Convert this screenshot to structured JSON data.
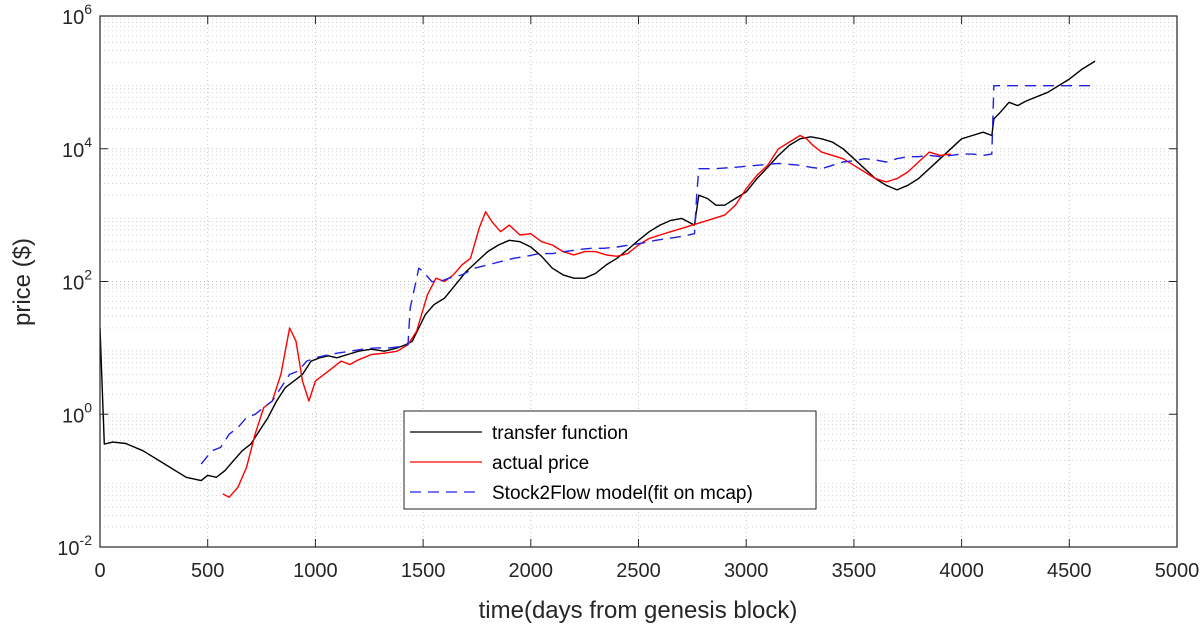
{
  "chart_data": {
    "type": "line",
    "title": "",
    "xlabel": "time(days from genesis block)",
    "ylabel": "price ($)",
    "xlim": [
      0,
      5000
    ],
    "ylim_log10": [
      -2,
      6
    ],
    "y_scale": "log",
    "grid": "major and minor, dotted",
    "x_ticks": [
      0,
      500,
      1000,
      1500,
      2000,
      2500,
      3000,
      3500,
      4000,
      4500,
      5000
    ],
    "x_tick_labels": [
      "0",
      "500",
      "1000",
      "1500",
      "2000",
      "2500",
      "3000",
      "3500",
      "4000",
      "4500",
      "5000"
    ],
    "y_ticks": [
      {
        "log": -2,
        "base": "10",
        "exp": "-2"
      },
      {
        "log": 0,
        "base": "10",
        "exp": "0"
      },
      {
        "log": 2,
        "base": "10",
        "exp": "2"
      },
      {
        "log": 4,
        "base": "10",
        "exp": "4"
      },
      {
        "log": 6,
        "base": "10",
        "exp": "6"
      }
    ],
    "legend_position": "lower-center",
    "series": [
      {
        "name": "transfer function",
        "color": "#000000",
        "style": "solid",
        "points": [
          [
            0,
            1.3
          ],
          [
            20,
            -0.45
          ],
          [
            60,
            -0.42
          ],
          [
            120,
            -0.44
          ],
          [
            200,
            -0.55
          ],
          [
            300,
            -0.75
          ],
          [
            400,
            -0.95
          ],
          [
            470,
            -1.0
          ],
          [
            500,
            -0.92
          ],
          [
            540,
            -0.95
          ],
          [
            580,
            -0.85
          ],
          [
            620,
            -0.7
          ],
          [
            660,
            -0.55
          ],
          [
            700,
            -0.45
          ],
          [
            740,
            -0.25
          ],
          [
            780,
            -0.05
          ],
          [
            820,
            0.2
          ],
          [
            860,
            0.4
          ],
          [
            900,
            0.5
          ],
          [
            940,
            0.6
          ],
          [
            980,
            0.8
          ],
          [
            1020,
            0.85
          ],
          [
            1060,
            0.88
          ],
          [
            1100,
            0.85
          ],
          [
            1150,
            0.9
          ],
          [
            1200,
            0.95
          ],
          [
            1260,
            0.98
          ],
          [
            1320,
            0.95
          ],
          [
            1380,
            1.0
          ],
          [
            1420,
            1.05
          ],
          [
            1450,
            1.1
          ],
          [
            1480,
            1.3
          ],
          [
            1510,
            1.5
          ],
          [
            1550,
            1.65
          ],
          [
            1600,
            1.75
          ],
          [
            1650,
            1.95
          ],
          [
            1700,
            2.15
          ],
          [
            1750,
            2.3
          ],
          [
            1800,
            2.45
          ],
          [
            1850,
            2.55
          ],
          [
            1900,
            2.62
          ],
          [
            1950,
            2.6
          ],
          [
            2000,
            2.52
          ],
          [
            2050,
            2.38
          ],
          [
            2100,
            2.2
          ],
          [
            2150,
            2.1
          ],
          [
            2200,
            2.05
          ],
          [
            2250,
            2.05
          ],
          [
            2300,
            2.12
          ],
          [
            2350,
            2.25
          ],
          [
            2400,
            2.35
          ],
          [
            2450,
            2.48
          ],
          [
            2500,
            2.62
          ],
          [
            2550,
            2.75
          ],
          [
            2600,
            2.85
          ],
          [
            2650,
            2.92
          ],
          [
            2700,
            2.95
          ],
          [
            2730,
            2.9
          ],
          [
            2760,
            2.85
          ],
          [
            2780,
            3.3
          ],
          [
            2820,
            3.25
          ],
          [
            2860,
            3.15
          ],
          [
            2900,
            3.15
          ],
          [
            2950,
            3.25
          ],
          [
            3000,
            3.35
          ],
          [
            3050,
            3.55
          ],
          [
            3100,
            3.72
          ],
          [
            3150,
            3.9
          ],
          [
            3200,
            4.05
          ],
          [
            3250,
            4.15
          ],
          [
            3300,
            4.18
          ],
          [
            3350,
            4.15
          ],
          [
            3400,
            4.1
          ],
          [
            3450,
            4.0
          ],
          [
            3500,
            3.85
          ],
          [
            3550,
            3.7
          ],
          [
            3600,
            3.55
          ],
          [
            3650,
            3.45
          ],
          [
            3700,
            3.38
          ],
          [
            3750,
            3.45
          ],
          [
            3800,
            3.55
          ],
          [
            3850,
            3.7
          ],
          [
            3900,
            3.85
          ],
          [
            3950,
            4.0
          ],
          [
            4000,
            4.15
          ],
          [
            4050,
            4.2
          ],
          [
            4100,
            4.25
          ],
          [
            4140,
            4.2
          ],
          [
            4150,
            4.45
          ],
          [
            4180,
            4.55
          ],
          [
            4220,
            4.7
          ],
          [
            4260,
            4.65
          ],
          [
            4300,
            4.72
          ],
          [
            4400,
            4.85
          ],
          [
            4500,
            5.05
          ],
          [
            4560,
            5.2
          ],
          [
            4620,
            5.32
          ]
        ]
      },
      {
        "name": "actual price",
        "color": "#ff0000",
        "style": "solid",
        "points": [
          [
            570,
            -1.2
          ],
          [
            600,
            -1.25
          ],
          [
            640,
            -1.1
          ],
          [
            680,
            -0.8
          ],
          [
            720,
            -0.3
          ],
          [
            760,
            0.1
          ],
          [
            800,
            0.2
          ],
          [
            840,
            0.6
          ],
          [
            880,
            1.3
          ],
          [
            910,
            1.1
          ],
          [
            940,
            0.5
          ],
          [
            970,
            0.2
          ],
          [
            1000,
            0.5
          ],
          [
            1040,
            0.6
          ],
          [
            1080,
            0.7
          ],
          [
            1120,
            0.8
          ],
          [
            1160,
            0.75
          ],
          [
            1200,
            0.82
          ],
          [
            1260,
            0.9
          ],
          [
            1320,
            0.92
          ],
          [
            1380,
            0.95
          ],
          [
            1430,
            1.05
          ],
          [
            1470,
            1.25
          ],
          [
            1520,
            1.8
          ],
          [
            1560,
            2.05
          ],
          [
            1600,
            2.0
          ],
          [
            1640,
            2.1
          ],
          [
            1680,
            2.25
          ],
          [
            1720,
            2.35
          ],
          [
            1760,
            2.8
          ],
          [
            1790,
            3.05
          ],
          [
            1820,
            2.9
          ],
          [
            1860,
            2.75
          ],
          [
            1900,
            2.85
          ],
          [
            1950,
            2.7
          ],
          [
            2000,
            2.72
          ],
          [
            2050,
            2.6
          ],
          [
            2100,
            2.55
          ],
          [
            2150,
            2.45
          ],
          [
            2200,
            2.4
          ],
          [
            2250,
            2.45
          ],
          [
            2300,
            2.45
          ],
          [
            2350,
            2.4
          ],
          [
            2400,
            2.38
          ],
          [
            2450,
            2.42
          ],
          [
            2500,
            2.55
          ],
          [
            2550,
            2.65
          ],
          [
            2600,
            2.7
          ],
          [
            2650,
            2.75
          ],
          [
            2700,
            2.8
          ],
          [
            2750,
            2.85
          ],
          [
            2800,
            2.9
          ],
          [
            2850,
            2.95
          ],
          [
            2900,
            3.0
          ],
          [
            2950,
            3.15
          ],
          [
            3000,
            3.4
          ],
          [
            3050,
            3.6
          ],
          [
            3100,
            3.75
          ],
          [
            3150,
            4.0
          ],
          [
            3200,
            4.1
          ],
          [
            3250,
            4.2
          ],
          [
            3280,
            4.15
          ],
          [
            3310,
            4.05
          ],
          [
            3350,
            3.95
          ],
          [
            3400,
            3.9
          ],
          [
            3450,
            3.85
          ],
          [
            3500,
            3.75
          ],
          [
            3550,
            3.65
          ],
          [
            3600,
            3.55
          ],
          [
            3650,
            3.5
          ],
          [
            3700,
            3.55
          ],
          [
            3750,
            3.65
          ],
          [
            3800,
            3.8
          ],
          [
            3850,
            3.95
          ],
          [
            3900,
            3.9
          ],
          [
            3950,
            3.92
          ]
        ]
      },
      {
        "name": "Stock2Flow model(fit on mcap)",
        "color": "#2020e0",
        "style": "dashed",
        "points": [
          [
            470,
            -0.75
          ],
          [
            520,
            -0.55
          ],
          [
            560,
            -0.5
          ],
          [
            600,
            -0.3
          ],
          [
            640,
            -0.2
          ],
          [
            680,
            -0.05
          ],
          [
            720,
            0.0
          ],
          [
            760,
            0.1
          ],
          [
            800,
            0.2
          ],
          [
            840,
            0.4
          ],
          [
            880,
            0.6
          ],
          [
            920,
            0.65
          ],
          [
            960,
            0.8
          ],
          [
            1000,
            0.85
          ],
          [
            1040,
            0.88
          ],
          [
            1100,
            0.92
          ],
          [
            1160,
            0.95
          ],
          [
            1220,
            0.98
          ],
          [
            1280,
            1.0
          ],
          [
            1340,
            1.0
          ],
          [
            1400,
            1.02
          ],
          [
            1430,
            1.05
          ],
          [
            1440,
            1.6
          ],
          [
            1460,
            1.9
          ],
          [
            1480,
            2.2
          ],
          [
            1500,
            2.15
          ],
          [
            1540,
            2.0
          ],
          [
            1580,
            2.0
          ],
          [
            1620,
            2.05
          ],
          [
            1680,
            2.1
          ],
          [
            1740,
            2.2
          ],
          [
            1800,
            2.25
          ],
          [
            1860,
            2.3
          ],
          [
            1920,
            2.35
          ],
          [
            1980,
            2.38
          ],
          [
            2040,
            2.42
          ],
          [
            2100,
            2.42
          ],
          [
            2160,
            2.45
          ],
          [
            2220,
            2.48
          ],
          [
            2280,
            2.5
          ],
          [
            2340,
            2.5
          ],
          [
            2400,
            2.52
          ],
          [
            2460,
            2.55
          ],
          [
            2520,
            2.58
          ],
          [
            2580,
            2.62
          ],
          [
            2640,
            2.65
          ],
          [
            2700,
            2.68
          ],
          [
            2760,
            2.72
          ],
          [
            2770,
            3.3
          ],
          [
            2780,
            3.7
          ],
          [
            2850,
            3.7
          ],
          [
            2950,
            3.72
          ],
          [
            3050,
            3.75
          ],
          [
            3150,
            3.78
          ],
          [
            3250,
            3.75
          ],
          [
            3300,
            3.72
          ],
          [
            3350,
            3.7
          ],
          [
            3400,
            3.75
          ],
          [
            3450,
            3.8
          ],
          [
            3500,
            3.82
          ],
          [
            3550,
            3.85
          ],
          [
            3600,
            3.83
          ],
          [
            3650,
            3.8
          ],
          [
            3700,
            3.85
          ],
          [
            3750,
            3.88
          ],
          [
            3800,
            3.88
          ],
          [
            3850,
            3.9
          ],
          [
            3900,
            3.88
          ],
          [
            3950,
            3.9
          ],
          [
            4000,
            3.92
          ],
          [
            4050,
            3.92
          ],
          [
            4100,
            3.9
          ],
          [
            4140,
            3.92
          ],
          [
            4150,
            4.95
          ],
          [
            4300,
            4.95
          ],
          [
            4450,
            4.95
          ],
          [
            4620,
            4.95
          ]
        ]
      }
    ]
  }
}
